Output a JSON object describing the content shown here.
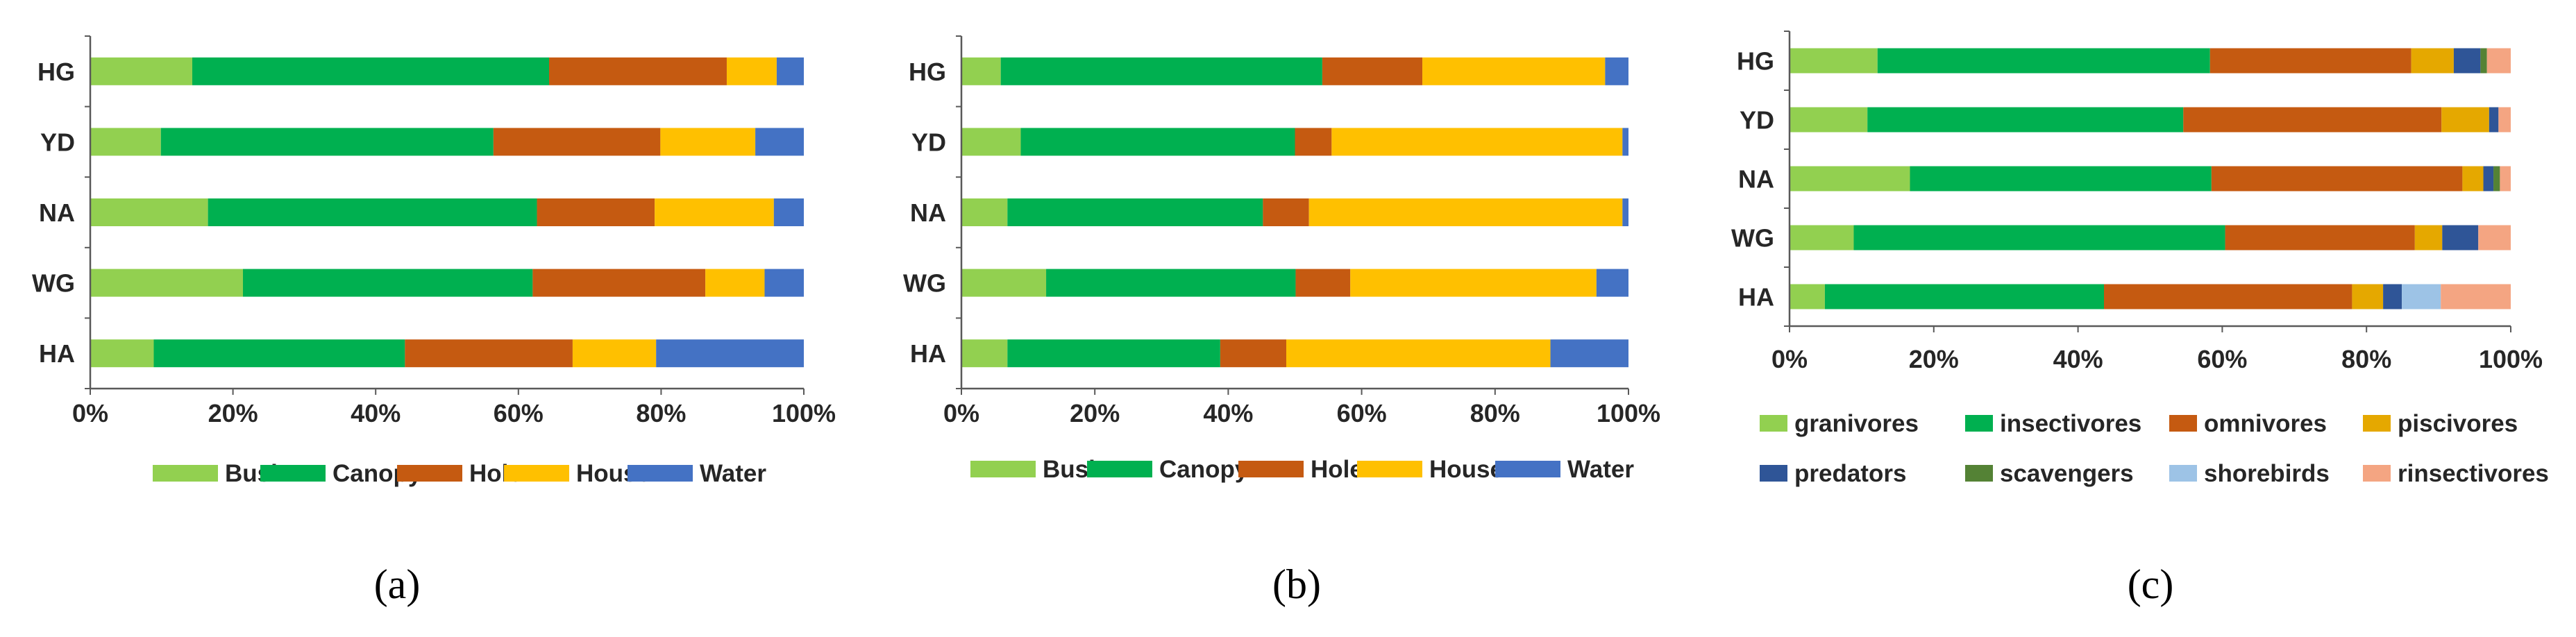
{
  "colors": {
    "Bush": "#92d050",
    "Canopy": "#00b050",
    "Hole": "#c55a11",
    "House": "#ffc000",
    "Water": "#4472c4",
    "granivores": "#92d050",
    "insectivores": "#00b050",
    "omnivores": "#c55a11",
    "piscivores": "#e5a800",
    "predators": "#2f5597",
    "scavengers": "#548235",
    "shorebirds": "#9dc3e6",
    "rinsectivores": "#f4a582"
  },
  "chart_data": [
    {
      "type": "bar",
      "orientation": "horizontal",
      "stacked": true,
      "panel_label": "(a)",
      "categories": [
        "HG",
        "YD",
        "NA",
        "WG",
        "HA"
      ],
      "xlim": [
        0,
        100
      ],
      "x_ticks": [
        "0%",
        "20%",
        "40%",
        "60%",
        "80%",
        "100%"
      ],
      "legend_position": "bottom",
      "series": [
        {
          "name": "Bush",
          "values": [
            14.3,
            9.9,
            16.5,
            21.4,
            8.9
          ]
        },
        {
          "name": "Canopy",
          "values": [
            50.0,
            46.6,
            46.1,
            40.6,
            35.2
          ]
        },
        {
          "name": "Hole",
          "values": [
            24.9,
            23.4,
            16.5,
            24.2,
            23.5
          ]
        },
        {
          "name": "House",
          "values": [
            7.0,
            13.3,
            16.7,
            8.3,
            11.7
          ]
        },
        {
          "name": "Water",
          "values": [
            3.8,
            6.8,
            4.2,
            5.5,
            20.7
          ]
        }
      ]
    },
    {
      "type": "bar",
      "orientation": "horizontal",
      "stacked": true,
      "panel_label": "(b)",
      "categories": [
        "HG",
        "YD",
        "NA",
        "WG",
        "HA"
      ],
      "xlim": [
        0,
        100
      ],
      "x_ticks": [
        "0%",
        "20%",
        "40%",
        "60%",
        "80%",
        "100%"
      ],
      "legend_position": "bottom",
      "series": [
        {
          "name": "Bush",
          "values": [
            5.9,
            8.9,
            6.9,
            12.7,
            6.9
          ]
        },
        {
          "name": "Canopy",
          "values": [
            48.2,
            41.1,
            38.3,
            37.4,
            31.9
          ]
        },
        {
          "name": "Hole",
          "values": [
            15.0,
            5.5,
            6.9,
            8.2,
            9.9
          ]
        },
        {
          "name": "House",
          "values": [
            27.4,
            43.6,
            47.0,
            36.9,
            39.6
          ]
        },
        {
          "name": "Water",
          "values": [
            3.5,
            0.9,
            0.9,
            4.8,
            11.7
          ]
        }
      ]
    },
    {
      "type": "bar",
      "orientation": "horizontal",
      "stacked": true,
      "panel_label": "(c)",
      "categories": [
        "HG",
        "YD",
        "NA",
        "WG",
        "HA"
      ],
      "xlim": [
        0,
        100
      ],
      "x_ticks": [
        "0%",
        "20%",
        "40%",
        "60%",
        "80%",
        "100%"
      ],
      "legend_position": "bottom",
      "series": [
        {
          "name": "granivores",
          "values": [
            12.2,
            10.8,
            16.7,
            8.9,
            4.9
          ]
        },
        {
          "name": "insectivores",
          "values": [
            46.1,
            43.8,
            41.8,
            51.5,
            38.7
          ]
        },
        {
          "name": "omnivores",
          "values": [
            27.9,
            35.8,
            34.8,
            26.3,
            34.4
          ]
        },
        {
          "name": "piscivores",
          "values": [
            5.9,
            6.6,
            2.9,
            3.8,
            4.3
          ]
        },
        {
          "name": "predators",
          "values": [
            3.7,
            1.3,
            1.4,
            5.0,
            2.6
          ]
        },
        {
          "name": "scavengers",
          "values": [
            0.9,
            0.0,
            0.9,
            0.0,
            0.0
          ]
        },
        {
          "name": "shorebirds",
          "values": [
            0.0,
            0.0,
            0.0,
            0.0,
            5.4
          ]
        },
        {
          "name": "rinsectivores",
          "values": [
            3.3,
            1.7,
            1.5,
            4.5,
            9.7
          ]
        }
      ]
    }
  ]
}
